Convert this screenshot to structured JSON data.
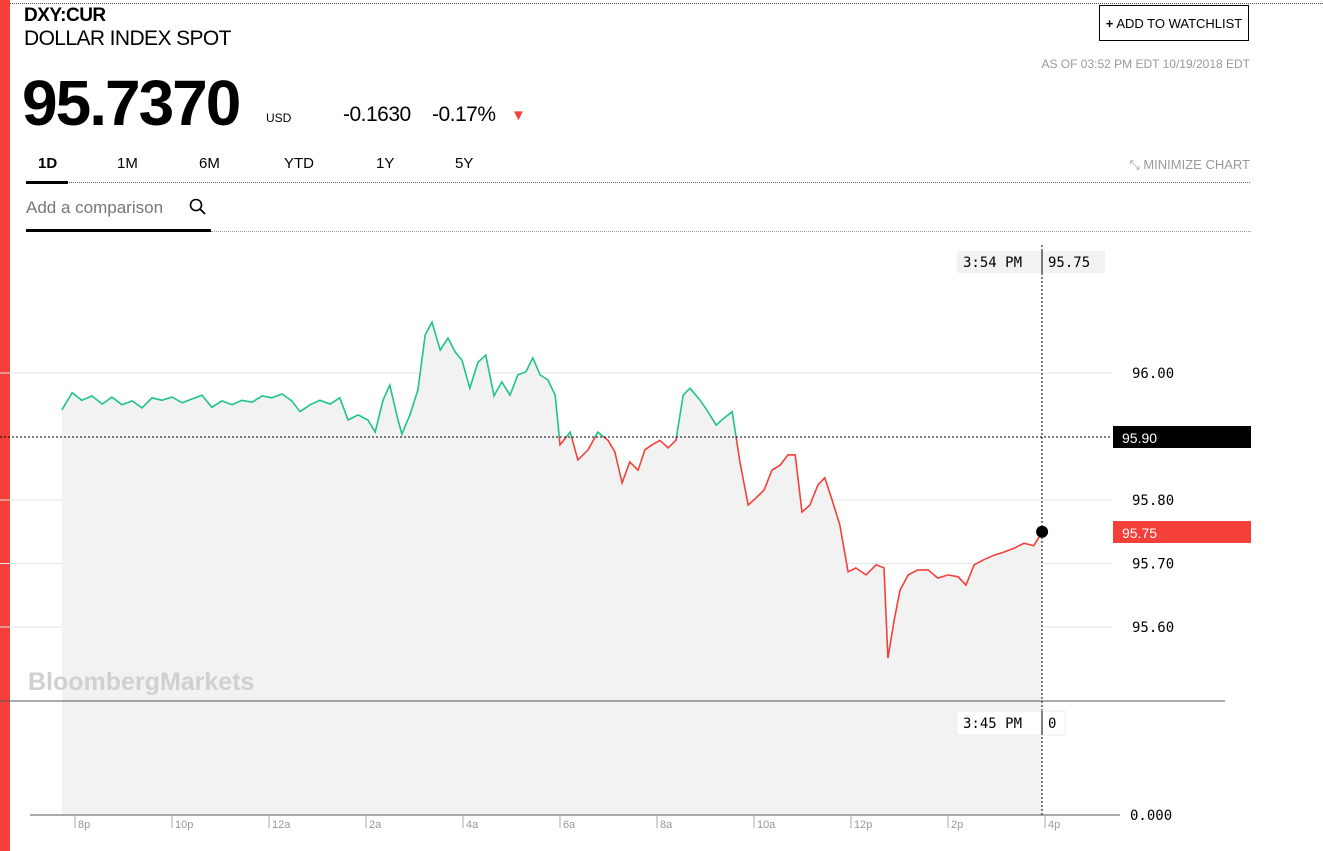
{
  "header": {
    "ticker": "DXY:CUR",
    "name": "DOLLAR INDEX SPOT",
    "price": "95.7370",
    "currency": "USD",
    "change": "-0.1630",
    "change_pct": "-0.17%",
    "direction_icon": "down-triangle-icon",
    "watchlist_label": "ADD TO WATCHLIST",
    "as_of": "AS OF 03:52 PM EDT 10/19/2018 EDT"
  },
  "tabs": [
    {
      "label": "1D",
      "active": true
    },
    {
      "label": "1M"
    },
    {
      "label": "6M"
    },
    {
      "label": "YTD"
    },
    {
      "label": "1Y"
    },
    {
      "label": "5Y"
    }
  ],
  "minimize_label": "MINIMIZE CHART",
  "comparison_placeholder": "Add a comparison",
  "watermark": "BloombergMarkets",
  "colors": {
    "up": "#1ec38b",
    "down": "#f5403a",
    "fill": "#f2f2f2"
  },
  "chart_data": {
    "type": "line",
    "x_unit": "hours since 8p",
    "x": [
      -0.27,
      -0.06,
      0.14,
      0.35,
      0.56,
      0.76,
      0.97,
      1.18,
      1.38,
      1.59,
      1.79,
      2.0,
      2.21,
      2.41,
      2.62,
      2.82,
      3.03,
      3.24,
      3.44,
      3.65,
      3.86,
      4.06,
      4.27,
      4.47,
      4.64,
      4.85,
      5.05,
      5.26,
      5.46,
      5.63,
      5.84,
      6.04,
      6.19,
      6.35,
      6.49,
      6.66,
      6.74,
      6.91,
      7.07,
      7.22,
      7.36,
      7.53,
      7.69,
      7.84,
      7.98,
      8.14,
      8.31,
      8.47,
      8.64,
      8.8,
      8.97,
      9.13,
      9.3,
      9.44,
      9.59,
      9.75,
      9.9,
      10.0,
      10.21,
      10.37,
      10.58,
      10.78,
      10.99,
      11.13,
      11.28,
      11.44,
      11.61,
      11.75,
      11.9,
      12.06,
      12.23,
      12.39,
      12.54,
      12.68,
      12.89,
      13.05,
      13.22,
      13.38,
      13.55,
      13.71,
      13.88,
      14.04,
      14.21,
      14.37,
      14.54,
      14.7,
      14.85,
      14.99,
      15.15,
      15.32,
      15.46,
      15.61,
      15.77,
      15.94,
      16.1,
      16.31,
      16.52,
      16.68,
      16.76,
      16.89,
      17.01,
      17.18,
      17.38,
      17.59,
      17.79,
      18.0,
      18.21,
      18.37,
      18.54,
      18.74,
      18.95,
      19.15,
      19.36,
      19.57,
      19.77,
      19.94
    ],
    "values": [
      95.942,
      95.969,
      95.957,
      95.964,
      95.951,
      95.962,
      95.95,
      95.956,
      95.945,
      95.961,
      95.957,
      95.962,
      95.953,
      95.959,
      95.965,
      95.946,
      95.956,
      95.95,
      95.957,
      95.954,
      95.964,
      95.961,
      95.967,
      95.956,
      95.939,
      95.95,
      95.957,
      95.951,
      95.961,
      95.926,
      95.934,
      95.926,
      95.907,
      95.957,
      95.981,
      95.926,
      95.904,
      95.935,
      95.973,
      96.06,
      96.08,
      96.036,
      96.055,
      96.033,
      96.02,
      95.976,
      96.017,
      96.028,
      95.964,
      95.986,
      95.965,
      95.997,
      96.002,
      96.024,
      95.997,
      95.989,
      95.965,
      95.887,
      95.907,
      95.863,
      95.879,
      95.907,
      95.894,
      95.876,
      95.827,
      95.86,
      95.847,
      95.879,
      95.887,
      95.894,
      95.882,
      95.894,
      95.965,
      95.976,
      95.957,
      95.939,
      95.918,
      95.929,
      95.939,
      95.86,
      95.792,
      95.803,
      95.816,
      95.847,
      95.855,
      95.871,
      95.871,
      95.781,
      95.792,
      95.824,
      95.835,
      95.8,
      95.761,
      95.687,
      95.693,
      95.682,
      95.698,
      95.693,
      95.551,
      95.611,
      95.658,
      95.682,
      95.69,
      95.69,
      95.677,
      95.682,
      95.679,
      95.666,
      95.698,
      95.706,
      95.713,
      95.718,
      95.724,
      95.732,
      95.728,
      95.75
    ],
    "previous_close": 95.9,
    "previous_close_label": "95.90",
    "last_label": "95.75",
    "x_ticks": [
      {
        "h": 0,
        "label": "8p"
      },
      {
        "h": 2,
        "label": "10p"
      },
      {
        "h": 4,
        "label": "12a"
      },
      {
        "h": 6,
        "label": "2a"
      },
      {
        "h": 8,
        "label": "4a"
      },
      {
        "h": 10,
        "label": "6a"
      },
      {
        "h": 12,
        "label": "8a"
      },
      {
        "h": 14,
        "label": "10a"
      },
      {
        "h": 16,
        "label": "12p"
      },
      {
        "h": 18,
        "label": "2p"
      },
      {
        "h": 20,
        "label": "4p"
      }
    ],
    "y_ticks": [
      {
        "v": 96.0,
        "label": "96.00"
      },
      {
        "v": 95.8,
        "label": "95.80"
      },
      {
        "v": 95.7,
        "label": "95.70"
      },
      {
        "v": 95.6,
        "label": "95.60"
      }
    ],
    "ylim": [
      95.5,
      96.1
    ],
    "volume_axis_label": "0.000",
    "crosshair": {
      "time": "3:54 PM",
      "value": "95.75",
      "volume_time": "3:45 PM",
      "volume_value": "0"
    }
  }
}
